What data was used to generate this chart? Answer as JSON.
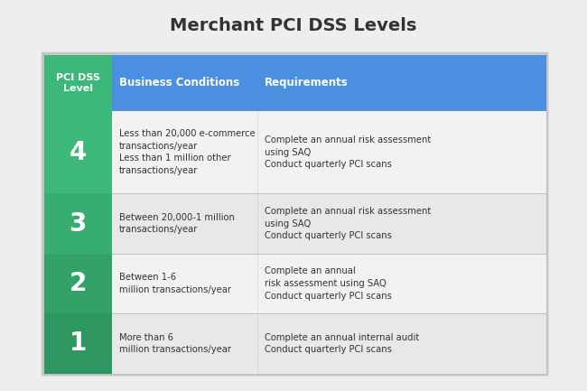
{
  "title": "Merchant PCI DSS Levels",
  "bg_color": "#eeeeee",
  "header_blue": "#4a8fe0",
  "header_green": "#3cb87a",
  "row_bg_light": "#f2f2f2",
  "row_bg_alt": "#e8e8e8",
  "divider_color": "#c0c0c0",
  "text_dark": "#333333",
  "text_white": "#ffffff",
  "header": [
    "PCI DSS\nLevel",
    "Business Conditions",
    "Requirements"
  ],
  "rows": [
    {
      "level": "4",
      "green": "#3cb87a",
      "conditions": "Less than 20,000 e-commerce\ntransactions/year\nLess than 1 million other\ntransactions/year",
      "requirements": "Complete an annual risk assessment\nusing SAQ\nConduct quarterly PCI scans"
    },
    {
      "level": "3",
      "green": "#38ad72",
      "conditions": "Between 20,000-1 million\ntransactions/year",
      "requirements": "Complete an annual risk assessment\nusing SAQ\nConduct quarterly PCI scans"
    },
    {
      "level": "2",
      "green": "#33a269",
      "conditions": "Between 1-6\nmillion transactions/year",
      "requirements": "Complete an annual\nrisk assessment using SAQ\nConduct quarterly PCI scans"
    },
    {
      "level": "1",
      "green": "#2e9660",
      "conditions": "More than 6\nmillion transactions/year",
      "requirements": "Complete an annual internal audit\nConduct quarterly PCI scans"
    }
  ],
  "fig_width": 6.5,
  "fig_height": 4.33,
  "dpi": 100
}
